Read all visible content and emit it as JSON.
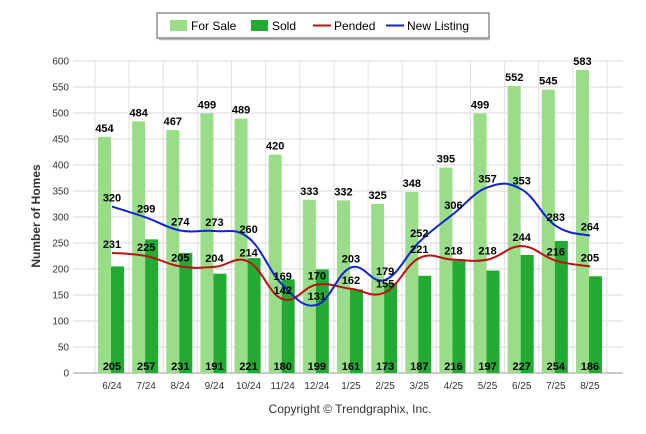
{
  "chart_data": {
    "type": "bar",
    "ylabel": "Number of Homes",
    "ylim": [
      0,
      600
    ],
    "y_ticks": [
      0,
      50,
      100,
      150,
      200,
      250,
      300,
      350,
      400,
      450,
      500,
      550,
      600
    ],
    "grid": true,
    "legend_position": "top-center",
    "categories": [
      "6/24",
      "7/24",
      "8/24",
      "9/24",
      "10/24",
      "11/24",
      "12/24",
      "1/25",
      "2/25",
      "3/25",
      "4/25",
      "5/25",
      "6/25",
      "7/25",
      "8/25"
    ],
    "series": [
      {
        "name": "For Sale",
        "kind": "bar",
        "color": "#99dd88",
        "values": [
          454,
          484,
          467,
          499,
          489,
          420,
          333,
          332,
          325,
          348,
          395,
          499,
          552,
          545,
          583
        ]
      },
      {
        "name": "Sold",
        "kind": "bar",
        "color": "#22aa33",
        "values": [
          205,
          257,
          231,
          191,
          221,
          180,
          199,
          161,
          173,
          187,
          216,
          197,
          227,
          254,
          186
        ]
      },
      {
        "name": "Pended",
        "kind": "line",
        "color": "#bb1111",
        "values": [
          231,
          225,
          205,
          204,
          214,
          142,
          170,
          162,
          155,
          221,
          218,
          218,
          244,
          216,
          205
        ]
      },
      {
        "name": "New Listing",
        "kind": "line",
        "color": "#1122dd",
        "values": [
          320,
          299,
          274,
          273,
          260,
          169,
          131,
          203,
          179,
          252,
          306,
          357,
          353,
          283,
          264
        ]
      }
    ]
  },
  "footer": {
    "copyright": "Copyright © Trendgraphix, Inc."
  }
}
